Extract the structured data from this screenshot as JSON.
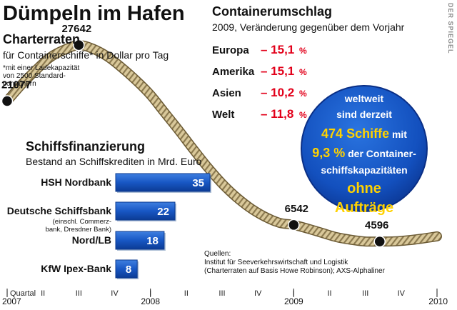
{
  "header": {
    "title": "Dümpeln im Hafen",
    "watermark": "DER SPIEGEL"
  },
  "charter": {
    "title": "Charterraten",
    "subtitle": "für Containerschiffe* in Dollar pro Tag",
    "footnote_lines": [
      "*mit einer Ladekapazität",
      "von 2500 Standard-",
      "containern"
    ]
  },
  "container": {
    "title": "Containerumschlag",
    "subtitle": "2009, Veränderung gegenüber dem Vorjahr",
    "rows": [
      {
        "region": "Europa",
        "value": "– 15,1",
        "unit": "%"
      },
      {
        "region": "Amerika",
        "value": "– 15,1",
        "unit": "%"
      },
      {
        "region": "Asien",
        "value": "– 10,2",
        "unit": "%"
      },
      {
        "region": "Welt",
        "value": "– 11,8",
        "unit": "%"
      }
    ]
  },
  "finance": {
    "title": "Schiffsfinanzierung",
    "subtitle": "Bestand an Schiffskrediten in Mrd. Euro",
    "banks": [
      {
        "name": "HSH Nordbank",
        "note_lines": [],
        "value": 35
      },
      {
        "name": "Deutsche Schiffsbank",
        "note_lines": [
          "(einschl. Commerz-",
          "bank, Dresdner Bank)"
        ],
        "value": 22
      },
      {
        "name": "Nord/LB",
        "note_lines": [],
        "value": 18
      },
      {
        "name": "KfW Ipex-Bank",
        "note_lines": [],
        "value": 8
      }
    ]
  },
  "circle": {
    "lines": [
      {
        "parts": [
          {
            "t": "weltweit",
            "s": "w"
          }
        ]
      },
      {
        "parts": [
          {
            "t": "sind derzeit",
            "s": "w"
          }
        ]
      },
      {
        "parts": [
          {
            "t": "474 Schiffe",
            "s": "y"
          },
          {
            "t": " mit",
            "s": "w"
          }
        ]
      },
      {
        "parts": [
          {
            "t": "9,3 %",
            "s": "y"
          },
          {
            "t": " der Container-",
            "s": "w"
          }
        ]
      },
      {
        "parts": [
          {
            "t": "schiffskapazitäten",
            "s": "w"
          }
        ]
      },
      {
        "parts": [
          {
            "t": "ohne",
            "s": "y"
          }
        ]
      },
      {
        "parts": [
          {
            "t": "Aufträge",
            "s": "y"
          }
        ]
      }
    ]
  },
  "sources": {
    "lines": [
      "Quellen:",
      "Institut für Seeverkehrswirtschaft und Logistik",
      "(Charterraten auf Basis Howe Robinson); AXS-Alphaliner"
    ]
  },
  "colors": {
    "red": "#e2001a",
    "blue": "#1857c4",
    "navy": "#0d2c8a",
    "yellow": "#ffd200",
    "rope": "#cdbb8c"
  },
  "chart_data": {
    "type": "line",
    "ylim": [
      0,
      30000
    ],
    "x_axis": {
      "quarter_label": "Quartal",
      "quarters": [
        "I",
        "II",
        "III",
        "IV",
        "I",
        "II",
        "III",
        "IV",
        "I",
        "II",
        "III",
        "IV",
        "I"
      ],
      "years": [
        {
          "label": "2007",
          "q": 0
        },
        {
          "label": "2008",
          "q": 4
        },
        {
          "label": "2009",
          "q": 8
        },
        {
          "label": "2010",
          "q": 12
        }
      ]
    },
    "series": [
      {
        "x": [
          0,
          0.4,
          0.8,
          1.2,
          1.6,
          2.0,
          2.4,
          2.8,
          3.2,
          3.6,
          4.0,
          4.4,
          4.8,
          5.2,
          5.6,
          6.0,
          6.4,
          6.8,
          7.2,
          7.6,
          8.0,
          8.4,
          8.8,
          9.2,
          9.6,
          10.0,
          10.4,
          10.8,
          11.2,
          11.6,
          12.0
        ],
        "values": [
          21077,
          23000,
          24700,
          26200,
          27100,
          27642,
          27200,
          26300,
          25000,
          23500,
          21800,
          19700,
          17600,
          15400,
          13300,
          11400,
          9800,
          8500,
          7500,
          6800,
          6542,
          6100,
          5600,
          5100,
          4800,
          4600,
          4596,
          4620,
          4750,
          4950,
          5200
        ]
      }
    ],
    "labels": [
      {
        "x": 0,
        "value": 21077,
        "text": "21077"
      },
      {
        "x": 2,
        "value": 27642,
        "text": "27642"
      },
      {
        "x": 8,
        "value": 6542,
        "text": "6542"
      },
      {
        "x": 10.4,
        "value": 4596,
        "text": "4596"
      }
    ]
  }
}
